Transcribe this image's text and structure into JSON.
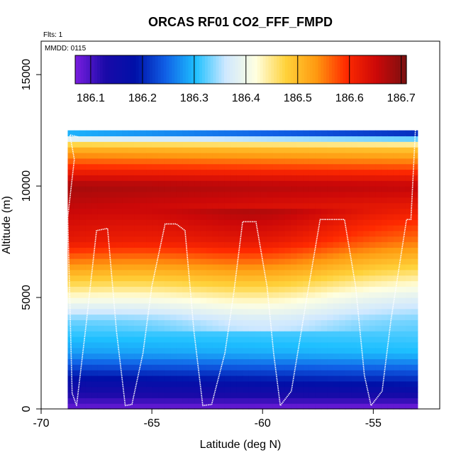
{
  "chart_data": {
    "type": "heatmap",
    "title": "ORCAS RF01 CO2_FFF_FMPD",
    "annotations": {
      "flights": "Flts: 1",
      "date": "MMDD: 0115"
    },
    "xlabel": "Latitude (deg N)",
    "ylabel": "Altitude (m)",
    "xlim": [
      -70,
      -52
    ],
    "ylim": [
      0,
      16500
    ],
    "x_ticks": [
      -70,
      -65,
      -60,
      -55
    ],
    "x_tick_labels": [
      "-70",
      "-65",
      "-60",
      "-55"
    ],
    "y_ticks": [
      0,
      5000,
      10000,
      15000
    ],
    "y_tick_labels": [
      "0",
      "5000",
      "10000",
      "15000"
    ],
    "colorbar": {
      "range": [
        186.07,
        186.71
      ],
      "ticks": [
        186.1,
        186.2,
        186.3,
        186.4,
        186.5,
        186.6,
        186.7
      ],
      "tick_labels": [
        "186.1",
        "186.2",
        "186.3",
        "186.4",
        "186.5",
        "186.6",
        "186.7"
      ],
      "colors": [
        "#7a1ee0",
        "#1a0aa8",
        "#0010a8",
        "#1060e6",
        "#1ec0ff",
        "#cfe8ff",
        "#ffffe0",
        "#ffd23a",
        "#ff9a10",
        "#ff2a00",
        "#cc0808",
        "#7a1010"
      ]
    },
    "field": {
      "data_extent_x": [
        -68.8,
        -53.0
      ],
      "data_extent_y": [
        0,
        12500
      ],
      "upper_profiles": [
        {
          "at_altitude": 0,
          "values": [
            186.08,
            186.07
          ]
        },
        {
          "at_altitude": 1000,
          "values": [
            186.15,
            186.18
          ]
        },
        {
          "at_altitude": 2500,
          "values": [
            186.28,
            186.3
          ]
        },
        {
          "at_altitude": 4000,
          "values": [
            186.33,
            186.33
          ]
        },
        {
          "at_altitude": 5000,
          "values": [
            186.42,
            186.38
          ]
        },
        {
          "at_altitude": 7500,
          "values": [
            186.62,
            186.55
          ]
        },
        {
          "at_altitude": 10000,
          "values": [
            186.68,
            186.66
          ]
        },
        {
          "at_altitude": 11800,
          "values": [
            186.5,
            186.48
          ]
        },
        {
          "at_altitude": 12500,
          "values": [
            186.25,
            186.15
          ]
        }
      ]
    },
    "flight_track": {
      "lat": [
        -53.1,
        -53.3,
        -53.5,
        -53.7,
        -54.2,
        -54.6,
        -55.1,
        -55.4,
        -55.8,
        -56.3,
        -56.9,
        -57.4,
        -58.0,
        -58.7,
        -59.2,
        -59.5,
        -59.8,
        -60.3,
        -60.9,
        -61.3,
        -61.7,
        -62.3,
        -62.7,
        -63.1,
        -63.5,
        -63.9,
        -64.4,
        -65.0,
        -65.4,
        -65.9,
        -66.2,
        -66.6,
        -67.0,
        -67.5,
        -68.0,
        -68.4,
        -68.6,
        -68.8,
        -68.5,
        -68.7,
        -68.3
      ],
      "alt": [
        12500,
        8500,
        8500,
        7200,
        4000,
        800,
        150,
        1500,
        5500,
        8500,
        8500,
        8500,
        5000,
        800,
        150,
        2500,
        5500,
        8400,
        8400,
        5200,
        2500,
        200,
        150,
        3500,
        8000,
        8300,
        8300,
        5500,
        2500,
        200,
        150,
        3500,
        8100,
        8000,
        3500,
        150,
        700,
        8600,
        11200,
        12300,
        12200
      ]
    }
  }
}
